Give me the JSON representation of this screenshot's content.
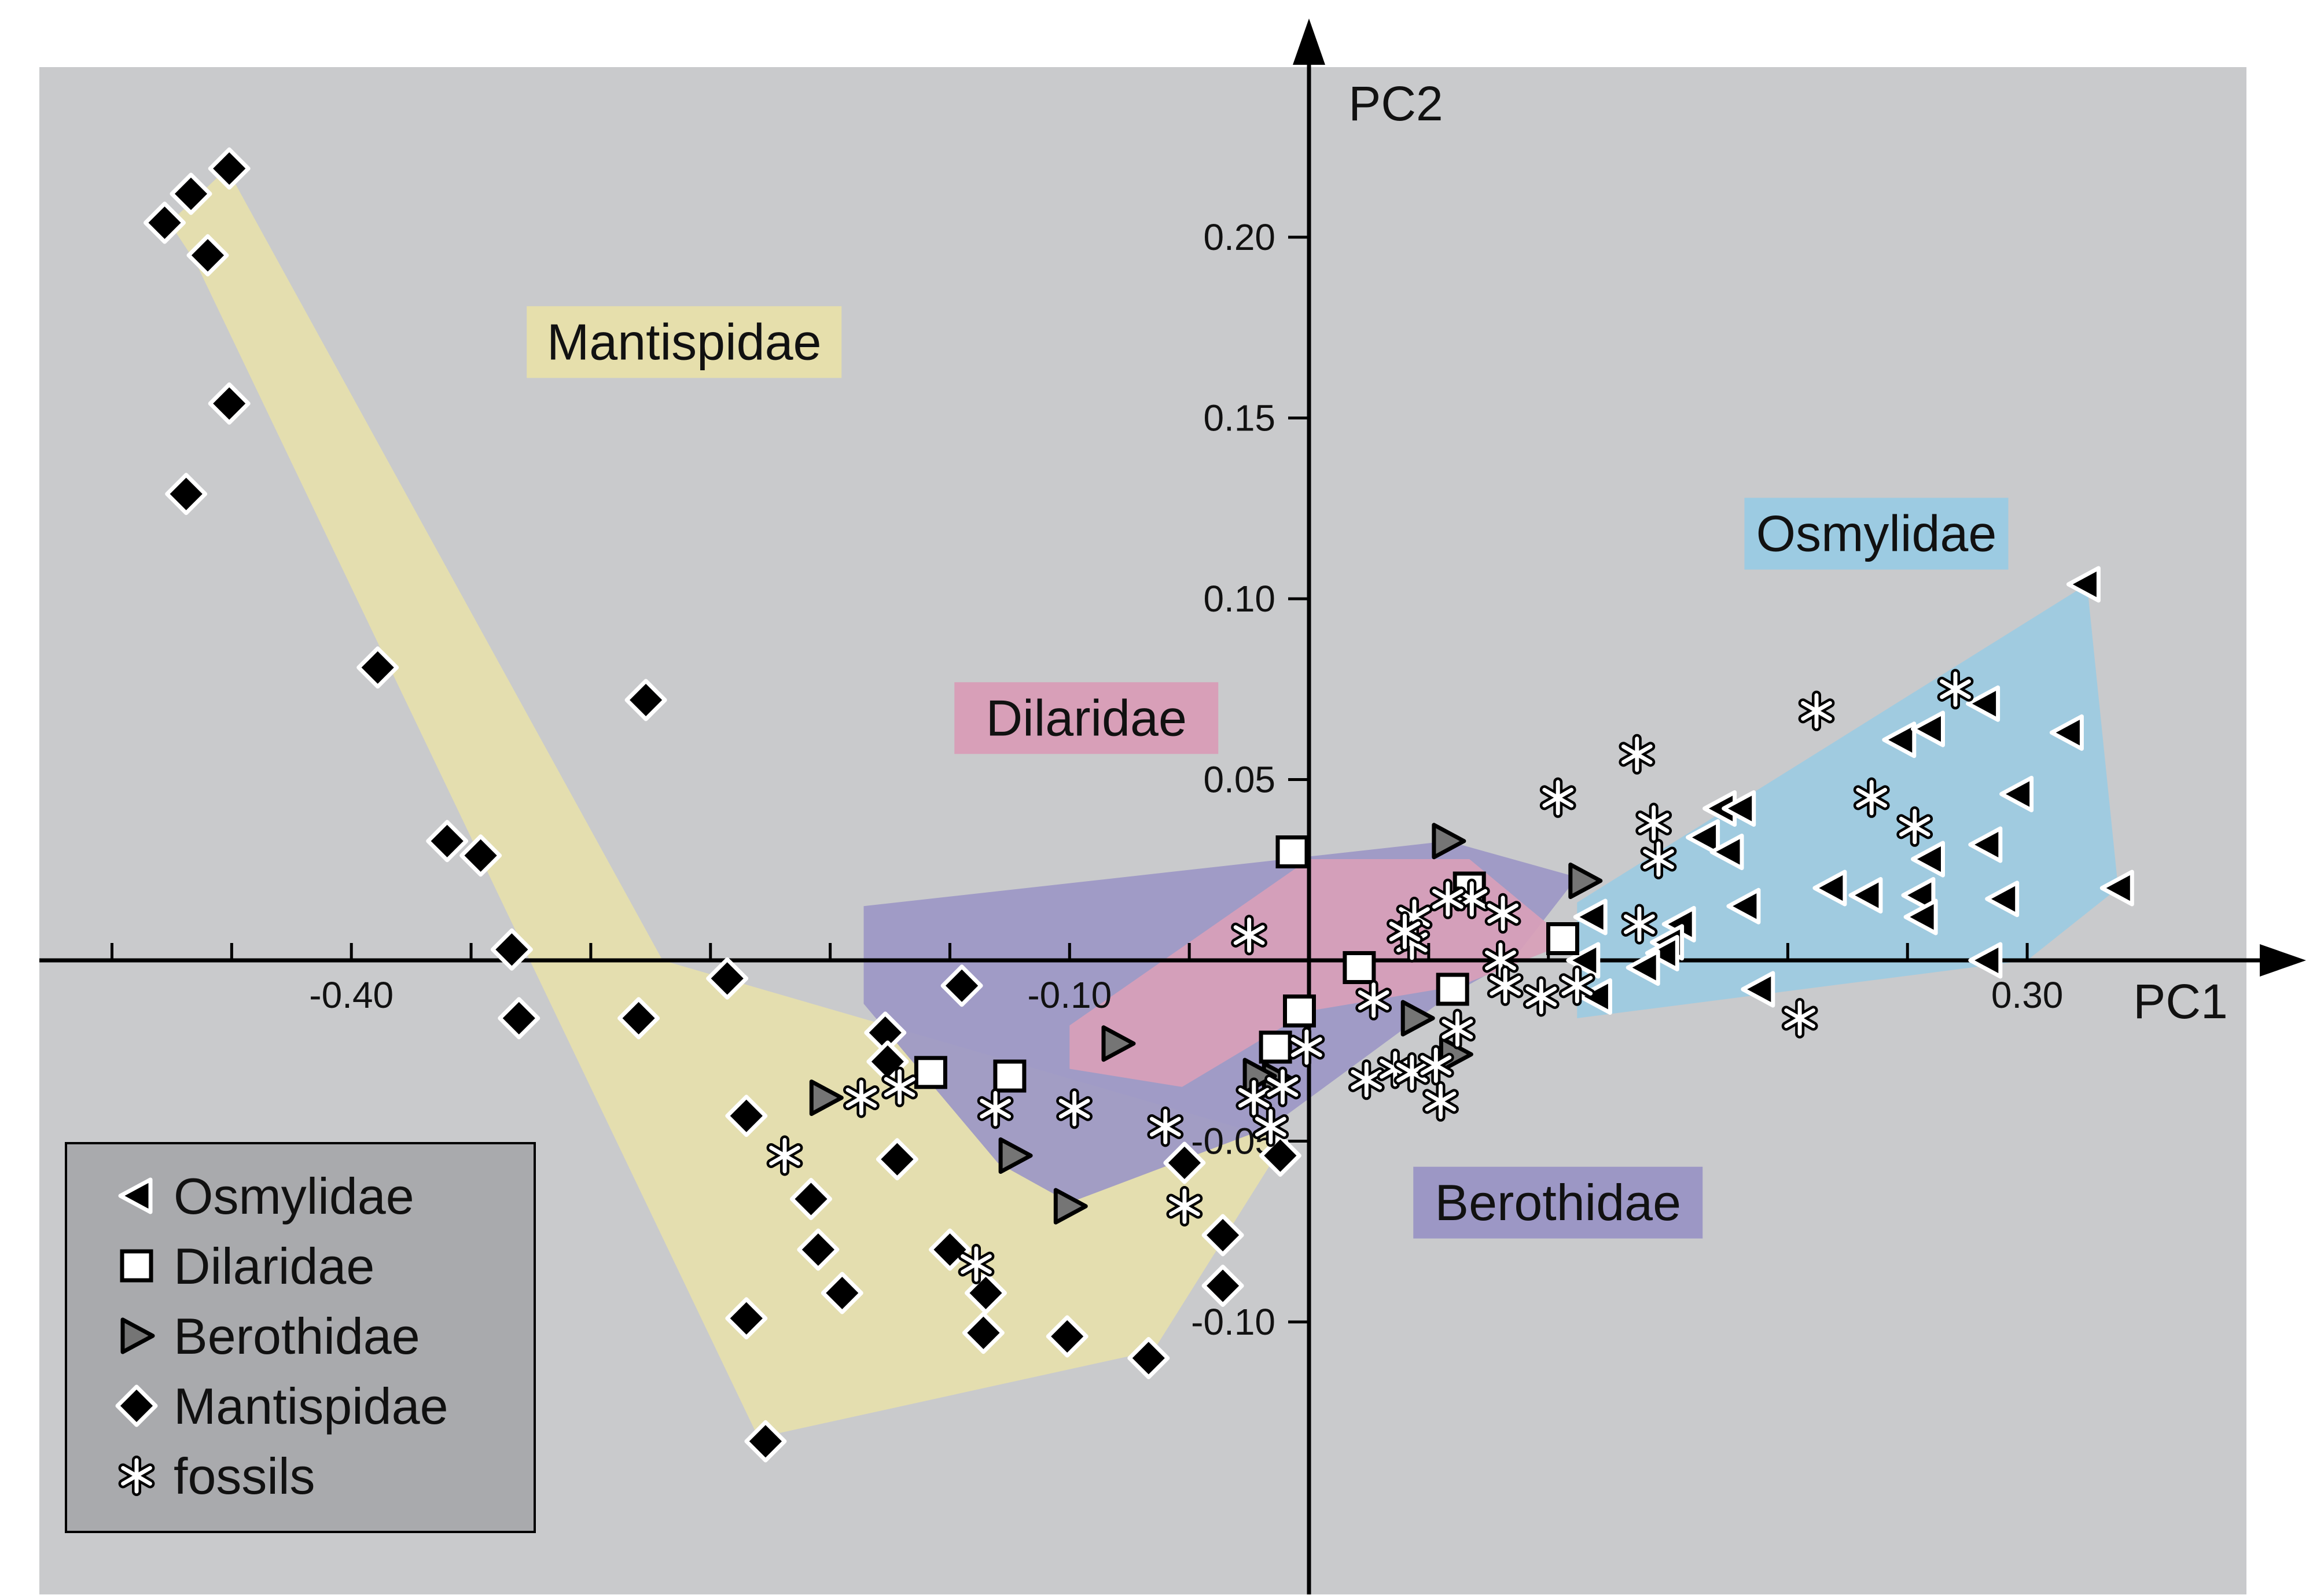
{
  "chart_data": {
    "type": "scatter",
    "xlabel": "PC1",
    "ylabel": "PC2",
    "xlim": [
      -0.535,
      0.39
    ],
    "ylim": [
      -0.118,
      0.248
    ],
    "x_ticks": [
      -0.5,
      -0.45,
      -0.4,
      -0.35,
      -0.3,
      -0.25,
      -0.2,
      -0.15,
      -0.1,
      -0.05,
      0.0,
      0.05,
      0.1,
      0.15,
      0.2,
      0.25,
      0.3
    ],
    "x_tick_labels": [
      {
        "value": -0.4,
        "label": "-0.40"
      },
      {
        "value": -0.1,
        "label": "-0.10"
      },
      {
        "value": 0.3,
        "label": "0.30"
      }
    ],
    "y_ticks": [
      -0.1,
      -0.05,
      0.05,
      0.1,
      0.15,
      0.2
    ],
    "y_tick_labels": [
      {
        "value": 0.2,
        "label": "0.20"
      },
      {
        "value": 0.15,
        "label": "0.15"
      },
      {
        "value": 0.1,
        "label": "0.10"
      },
      {
        "value": 0.05,
        "label": "0.05"
      },
      {
        "value": -0.05,
        "label": "-0.05"
      },
      {
        "value": -0.1,
        "label": "-0.10"
      }
    ],
    "background_color": "#c9cacc",
    "hulls": [
      {
        "name": "Mantispidae",
        "color": "#e6dfac",
        "label_at": [
          -0.261,
          0.171
        ],
        "polygon": [
          [
            -0.476,
            0.204
          ],
          [
            -0.452,
            0.219
          ],
          [
            -0.27,
            0.0
          ],
          [
            -0.01,
            -0.05
          ],
          [
            -0.065,
            -0.108
          ],
          [
            -0.23,
            -0.132
          ],
          [
            -0.465,
            0.193
          ]
        ]
      },
      {
        "name": "Berothidae",
        "color": "#9c97c5",
        "label_at": [
          0.104,
          -0.067
        ],
        "polygon": [
          [
            -0.186,
            0.015
          ],
          [
            0.058,
            0.033
          ],
          [
            0.112,
            0.023
          ],
          [
            0.085,
            0.0
          ],
          [
            0.058,
            -0.01
          ],
          [
            -0.016,
            -0.046
          ],
          [
            -0.1,
            -0.067
          ],
          [
            -0.13,
            -0.056
          ],
          [
            -0.186,
            -0.012
          ]
        ]
      },
      {
        "name": "Dilaridae",
        "color": "#d89fb8",
        "label_at": [
          -0.093,
          0.067
        ],
        "polygon": [
          [
            -0.1,
            -0.018
          ],
          [
            0.0,
            0.028
          ],
          [
            0.067,
            0.028
          ],
          [
            0.109,
            0.005
          ],
          [
            0.063,
            -0.007
          ],
          [
            0.0,
            -0.014
          ],
          [
            -0.053,
            -0.035
          ],
          [
            -0.1,
            -0.03
          ]
        ]
      },
      {
        "name": "Osmylidae",
        "color": "#9ccbe2",
        "label_at": [
          0.237,
          0.118
        ],
        "polygon": [
          [
            0.112,
            0.016
          ],
          [
            0.325,
            0.104
          ],
          [
            0.338,
            0.02
          ],
          [
            0.3,
            0.0
          ],
          [
            0.112,
            -0.016
          ]
        ]
      }
    ],
    "series": [
      {
        "name": "Osmylidae",
        "marker": "triangle-left",
        "fill": "#000000",
        "stroke": "#ffffff",
        "points": [
          [
            0.324,
            0.104
          ],
          [
            0.172,
            0.042
          ],
          [
            0.18,
            0.042
          ],
          [
            0.247,
            0.061
          ],
          [
            0.259,
            0.064
          ],
          [
            0.282,
            0.071
          ],
          [
            0.317,
            0.063
          ],
          [
            0.259,
            0.028
          ],
          [
            0.296,
            0.046
          ],
          [
            0.165,
            0.034
          ],
          [
            0.175,
            0.03
          ],
          [
            0.155,
            0.01
          ],
          [
            0.182,
            0.015
          ],
          [
            0.218,
            0.02
          ],
          [
            0.233,
            0.018
          ],
          [
            0.255,
            0.018
          ],
          [
            0.283,
            0.032
          ],
          [
            0.29,
            0.017
          ],
          [
            0.338,
            0.02
          ],
          [
            0.118,
            0.012
          ],
          [
            0.15,
            0.005
          ],
          [
            0.115,
            0.0
          ],
          [
            0.148,
            0.002
          ],
          [
            0.14,
            -0.002
          ],
          [
            0.12,
            -0.01
          ],
          [
            0.188,
            -0.008
          ],
          [
            0.256,
            0.012
          ],
          [
            0.283,
            0.0
          ]
        ]
      },
      {
        "name": "Dilaridae",
        "marker": "square",
        "fill": "#ffffff",
        "stroke": "#000000",
        "points": [
          [
            -0.007,
            0.03
          ],
          [
            0.067,
            0.02
          ],
          [
            0.106,
            0.006
          ],
          [
            0.021,
            -0.002
          ],
          [
            -0.125,
            -0.032
          ],
          [
            -0.158,
            -0.031
          ],
          [
            -0.004,
            -0.014
          ],
          [
            -0.014,
            -0.024
          ],
          [
            0.06,
            -0.008
          ]
        ]
      },
      {
        "name": "Berothidae",
        "marker": "triangle-right",
        "fill": "#757575",
        "stroke": "#000000",
        "points": [
          [
            0.058,
            0.033
          ],
          [
            0.115,
            0.022
          ],
          [
            -0.202,
            -0.038
          ],
          [
            -0.08,
            -0.023
          ],
          [
            -0.123,
            -0.054
          ],
          [
            -0.1,
            -0.068
          ],
          [
            -0.013,
            -0.033
          ],
          [
            0.045,
            -0.016
          ],
          [
            0.061,
            -0.026
          ],
          [
            -0.021,
            -0.032
          ]
        ]
      },
      {
        "name": "Mantispidae",
        "marker": "diamond",
        "fill": "#000000",
        "stroke": "#ffffff",
        "points": [
          [
            -0.478,
            0.204
          ],
          [
            -0.467,
            0.212
          ],
          [
            -0.46,
            0.195
          ],
          [
            -0.451,
            0.219
          ],
          [
            -0.451,
            0.154
          ],
          [
            -0.469,
            0.129
          ],
          [
            -0.389,
            0.081
          ],
          [
            -0.277,
            0.072
          ],
          [
            -0.36,
            0.033
          ],
          [
            -0.346,
            0.029
          ],
          [
            -0.333,
            0.003
          ],
          [
            -0.33,
            -0.016
          ],
          [
            -0.28,
            -0.016
          ],
          [
            -0.243,
            -0.005
          ],
          [
            -0.235,
            -0.043
          ],
          [
            -0.208,
            -0.066
          ],
          [
            -0.205,
            -0.08
          ],
          [
            -0.195,
            -0.092
          ],
          [
            -0.235,
            -0.099
          ],
          [
            -0.227,
            -0.133
          ],
          [
            -0.172,
            -0.055
          ],
          [
            -0.15,
            -0.08
          ],
          [
            -0.135,
            -0.092
          ],
          [
            -0.145,
            -0.007
          ],
          [
            -0.177,
            -0.02
          ],
          [
            -0.176,
            -0.028
          ],
          [
            -0.101,
            -0.104
          ],
          [
            -0.136,
            -0.103
          ],
          [
            -0.067,
            -0.11
          ],
          [
            -0.052,
            -0.056
          ],
          [
            -0.036,
            -0.076
          ],
          [
            -0.036,
            -0.09
          ],
          [
            -0.012,
            -0.054
          ]
        ]
      },
      {
        "name": "fossils",
        "marker": "asterisk",
        "fill": "#ffffff",
        "stroke": "#000000",
        "points": [
          [
            -0.025,
            0.007
          ],
          [
            0.027,
            -0.011
          ],
          [
            0.043,
            0.005
          ],
          [
            0.044,
            0.012
          ],
          [
            0.04,
            0.008
          ],
          [
            0.068,
            0.017
          ],
          [
            0.081,
            0.013
          ],
          [
            0.058,
            0.017
          ],
          [
            -0.187,
            -0.038
          ],
          [
            -0.171,
            -0.035
          ],
          [
            -0.131,
            -0.041
          ],
          [
            -0.098,
            -0.041
          ],
          [
            -0.06,
            -0.046
          ],
          [
            -0.219,
            -0.054
          ],
          [
            -0.052,
            -0.068
          ],
          [
            -0.139,
            -0.084
          ],
          [
            -0.023,
            -0.038
          ],
          [
            -0.016,
            -0.046
          ],
          [
            -0.011,
            -0.035
          ],
          [
            -0.001,
            -0.024
          ],
          [
            0.024,
            -0.033
          ],
          [
            0.036,
            -0.03
          ],
          [
            0.043,
            -0.031
          ],
          [
            0.053,
            -0.029
          ],
          [
            0.055,
            -0.039
          ],
          [
            0.062,
            -0.019
          ],
          [
            0.08,
            0.0
          ],
          [
            0.082,
            -0.007
          ],
          [
            0.097,
            -0.01
          ],
          [
            0.112,
            -0.007
          ],
          [
            0.104,
            0.045
          ],
          [
            0.137,
            0.057
          ],
          [
            0.144,
            0.038
          ],
          [
            0.146,
            0.028
          ],
          [
            0.138,
            0.01
          ],
          [
            0.212,
            0.069
          ],
          [
            0.235,
            0.045
          ],
          [
            0.253,
            0.037
          ],
          [
            0.27,
            0.075
          ],
          [
            0.205,
            -0.016
          ]
        ]
      }
    ],
    "legend": {
      "placement": "bottom-left",
      "entries": [
        {
          "label": "Osmylidae",
          "marker": "triangle-left"
        },
        {
          "label": "Dilaridae",
          "marker": "square"
        },
        {
          "label": "Berothidae",
          "marker": "triangle-right"
        },
        {
          "label": "Mantispidae",
          "marker": "diamond"
        },
        {
          "label": "fossils",
          "marker": "asterisk"
        }
      ]
    }
  }
}
